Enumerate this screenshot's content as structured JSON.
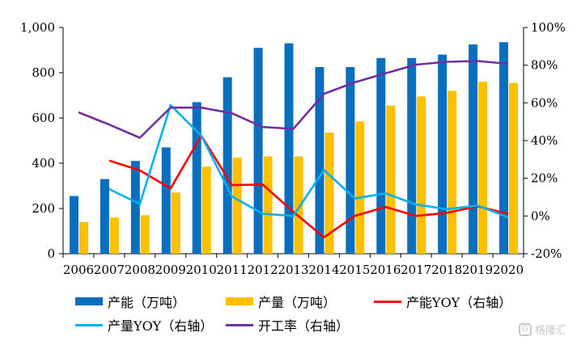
{
  "chart_data": {
    "type": "bar",
    "categories": [
      "2006",
      "2007",
      "2008",
      "2009",
      "2010",
      "2011",
      "2012",
      "2013",
      "2014",
      "2015",
      "2016",
      "2017",
      "2018",
      "2019",
      "2020"
    ],
    "series": [
      {
        "name": "产能（万吨）",
        "type": "bar",
        "axis": "left",
        "color": "#0a6ebf",
        "values": [
          255,
          330,
          410,
          470,
          670,
          780,
          910,
          930,
          825,
          825,
          865,
          865,
          880,
          925,
          935
        ]
      },
      {
        "name": "产量（万吨）",
        "type": "bar",
        "axis": "left",
        "color": "#ffc000",
        "values": [
          140,
          160,
          170,
          270,
          385,
          425,
          430,
          430,
          535,
          585,
          655,
          695,
          720,
          760,
          755
        ]
      },
      {
        "name": "产能YOY（右轴）",
        "type": "line",
        "axis": "right",
        "color": "#ff0000",
        "values": [
          null,
          29.4,
          24.2,
          14.6,
          42.6,
          16.4,
          16.7,
          2.2,
          -11.3,
          0,
          4.8,
          0,
          1.7,
          5.1,
          1.1
        ]
      },
      {
        "name": "产量YOY（右轴）",
        "type": "line",
        "axis": "right",
        "color": "#00b0f0",
        "values": [
          null,
          14.3,
          6.3,
          58.8,
          42.6,
          10.4,
          1.2,
          0,
          24.4,
          9.3,
          12,
          6.1,
          3.6,
          5.6,
          -0.7
        ]
      },
      {
        "name": "开工率（右轴）",
        "type": "line",
        "axis": "right",
        "color": "#7030a0",
        "values": [
          55,
          48.5,
          41.5,
          57.5,
          57.5,
          54.5,
          47.2,
          46.2,
          64.8,
          70.9,
          75.7,
          80.3,
          81.8,
          82.2,
          80.7
        ]
      }
    ],
    "y_left": {
      "min": 0,
      "max": 1000,
      "ticks": [
        0,
        200,
        400,
        600,
        800,
        1000
      ],
      "tick_labels": [
        "0",
        "200",
        "400",
        "600",
        "800",
        "1,000"
      ]
    },
    "y_right": {
      "min": -20,
      "max": 100,
      "ticks": [
        -20,
        0,
        20,
        40,
        60,
        80,
        100
      ],
      "tick_labels": [
        "-20%",
        "0%",
        "20%",
        "40%",
        "60%",
        "80%",
        "100%"
      ]
    },
    "grid": false,
    "legend_position": "bottom"
  },
  "legend": [
    {
      "label": "产能（万吨）",
      "kind": "bar",
      "color": "#0a6ebf"
    },
    {
      "label": "产量（万吨）",
      "kind": "bar",
      "color": "#ffc000"
    },
    {
      "label": "产能YOY（右轴）",
      "kind": "line",
      "color": "#ff0000"
    },
    {
      "label": "产量YOY（右轴）",
      "kind": "line",
      "color": "#00b0f0"
    },
    {
      "label": "开工率（右轴）",
      "kind": "line",
      "color": "#7030a0"
    }
  ],
  "watermark": {
    "text": "格隆汇",
    "icon": "gelonghui-logo-icon"
  }
}
